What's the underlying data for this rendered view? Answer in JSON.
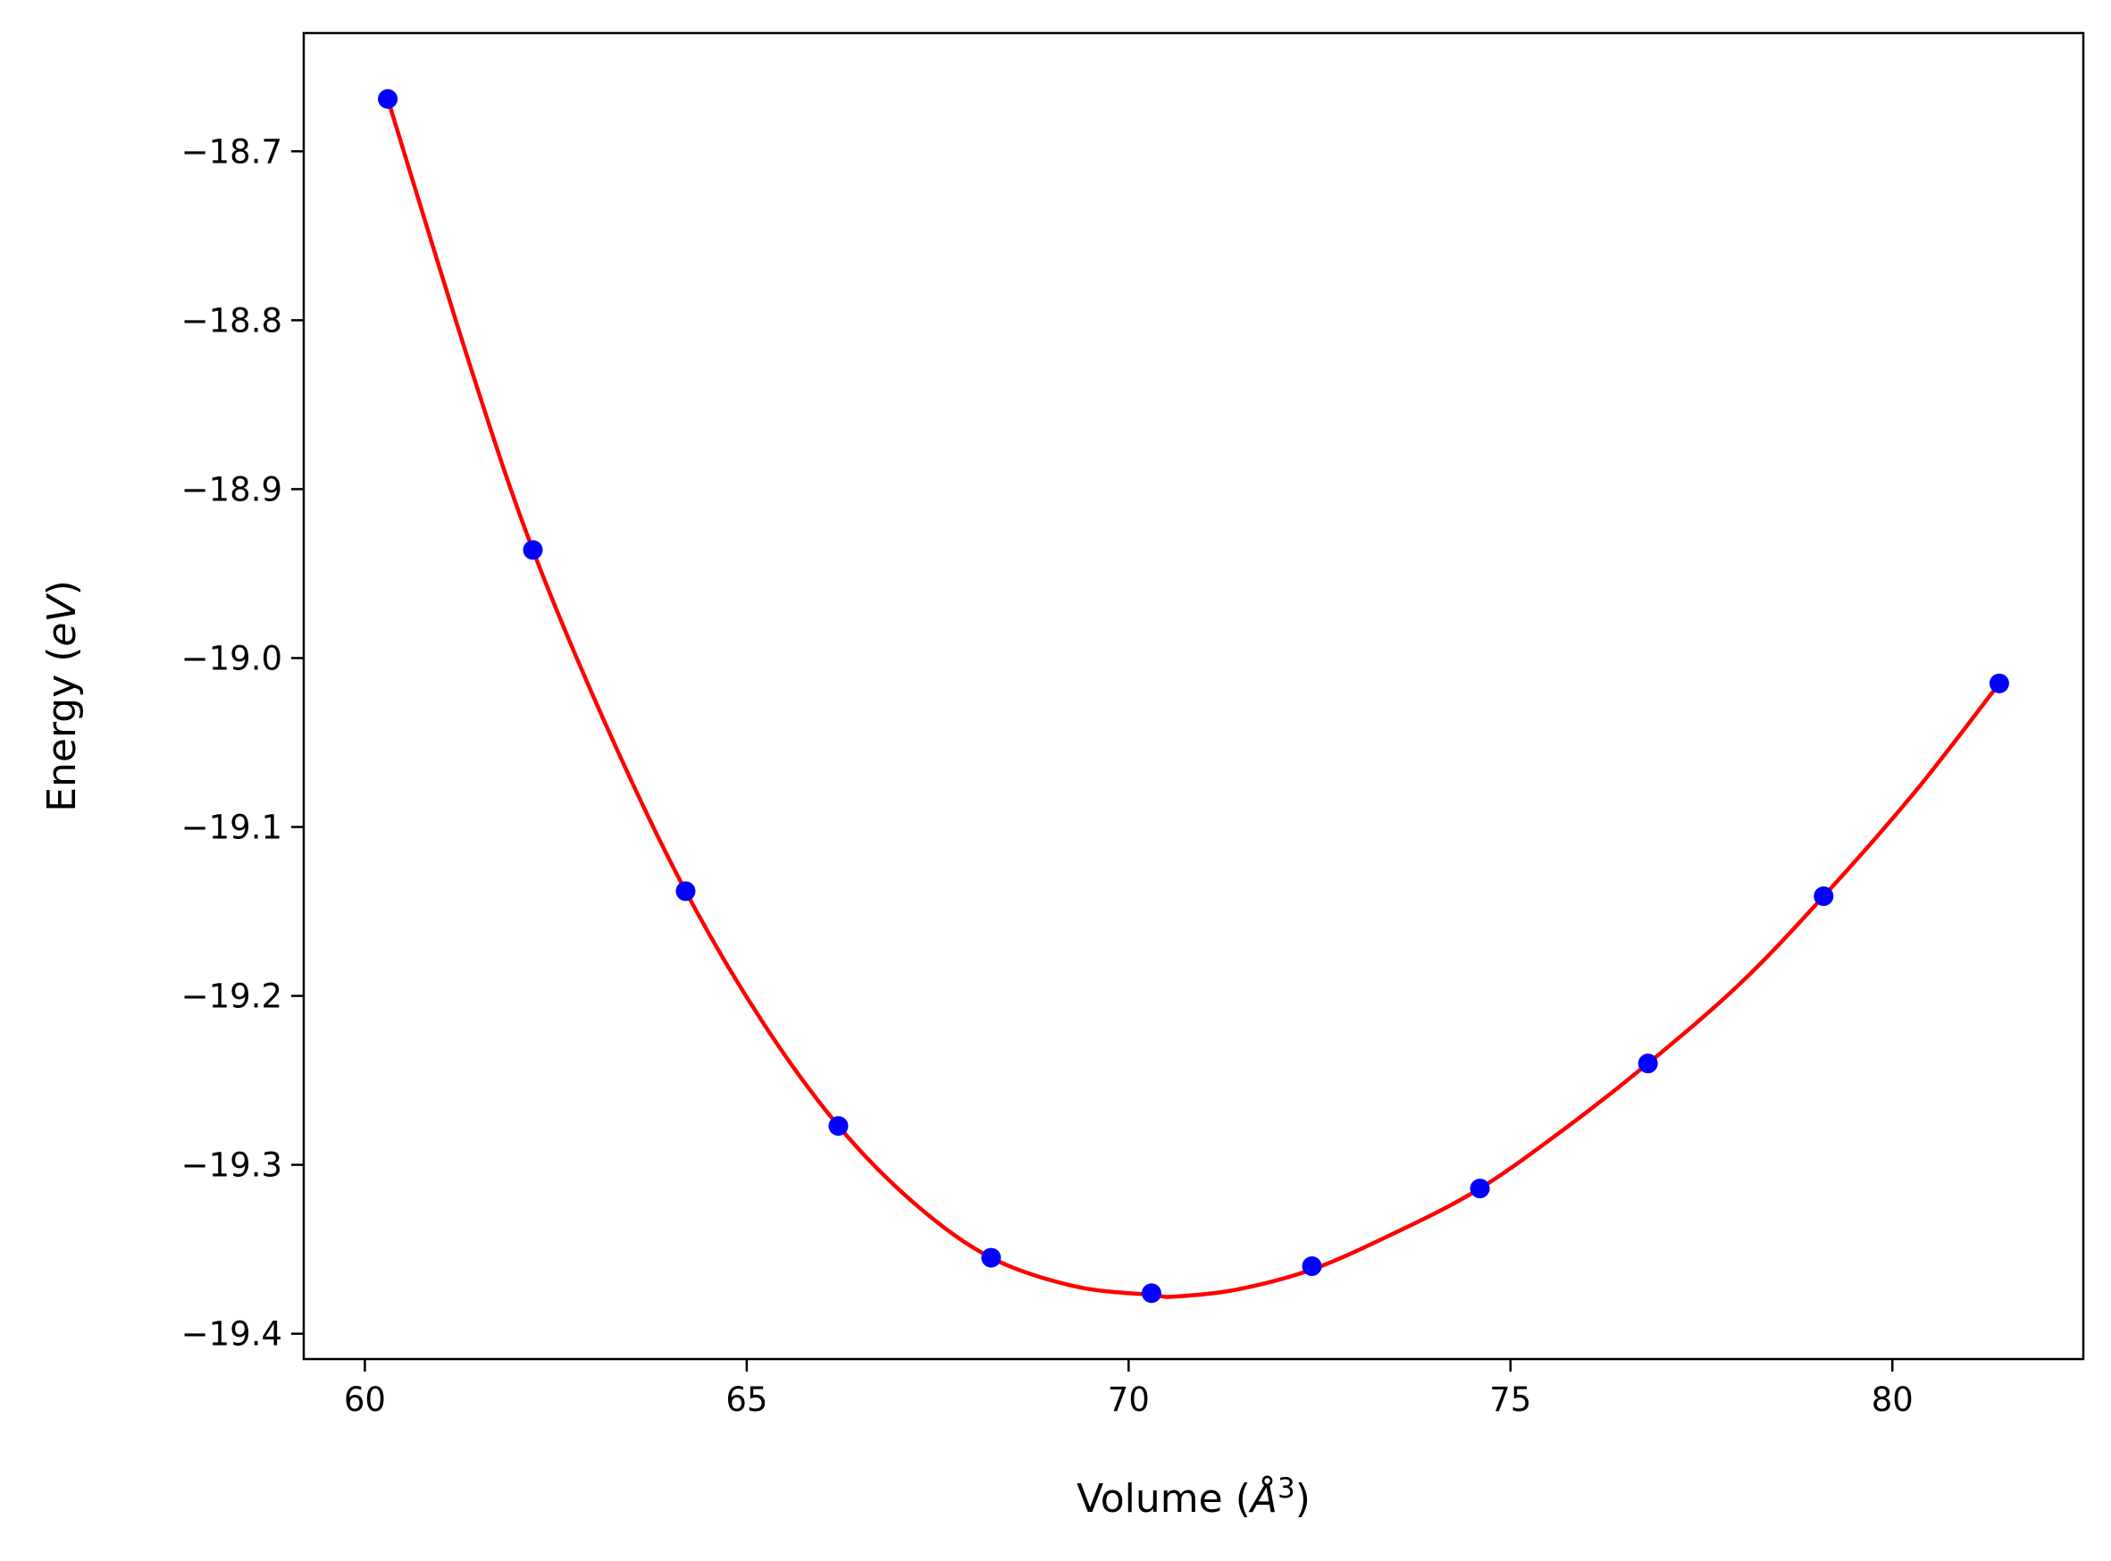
{
  "chart_data": {
    "type": "line",
    "title": "",
    "xlabel": {
      "pre": "Volume (",
      "unit": "Å",
      "sup": "3",
      "post": ")"
    },
    "ylabel": {
      "pre": "Energy (",
      "unit": "eV",
      "post": ")"
    },
    "xlim": [
      59.2,
      82.5
    ],
    "ylim": [
      -19.415,
      -18.63
    ],
    "xticks": [
      60,
      65,
      70,
      75,
      80
    ],
    "xtick_labels": [
      "60",
      "65",
      "70",
      "75",
      "80"
    ],
    "yticks": [
      -18.7,
      -18.8,
      -18.9,
      -19.0,
      -19.1,
      -19.2,
      -19.3,
      -19.4
    ],
    "ytick_labels": [
      "−18.7",
      "−18.8",
      "−18.9",
      "−19.0",
      "−19.1",
      "−19.2",
      "−19.3",
      "−19.4"
    ],
    "grid": false,
    "series": [
      {
        "kind": "scatter",
        "color": "#0000ff",
        "x": [
          60.3,
          62.2,
          64.2,
          66.2,
          68.2,
          70.3,
          72.4,
          74.6,
          76.8,
          79.1,
          81.4
        ],
        "y": [
          -18.669,
          -18.936,
          -19.138,
          -19.277,
          -19.355,
          -19.376,
          -19.36,
          -19.314,
          -19.24,
          -19.141,
          -19.015
        ]
      },
      {
        "kind": "line",
        "color": "#ff0000",
        "x": [
          60.3,
          61.4,
          62.2,
          63.2,
          64.2,
          65.2,
          66.2,
          67.2,
          68.2,
          69.3,
          70.3,
          70.6,
          71.4,
          72.4,
          73.5,
          74.6,
          75.7,
          76.8,
          78.0,
          79.1,
          80.3,
          81.4
        ],
        "y": [
          -18.669,
          -18.83,
          -18.936,
          -19.044,
          -19.138,
          -19.215,
          -19.277,
          -19.323,
          -19.355,
          -19.372,
          -19.377,
          -19.378,
          -19.374,
          -19.362,
          -19.34,
          -19.314,
          -19.279,
          -19.24,
          -19.193,
          -19.141,
          -19.079,
          -19.015
        ]
      }
    ]
  }
}
